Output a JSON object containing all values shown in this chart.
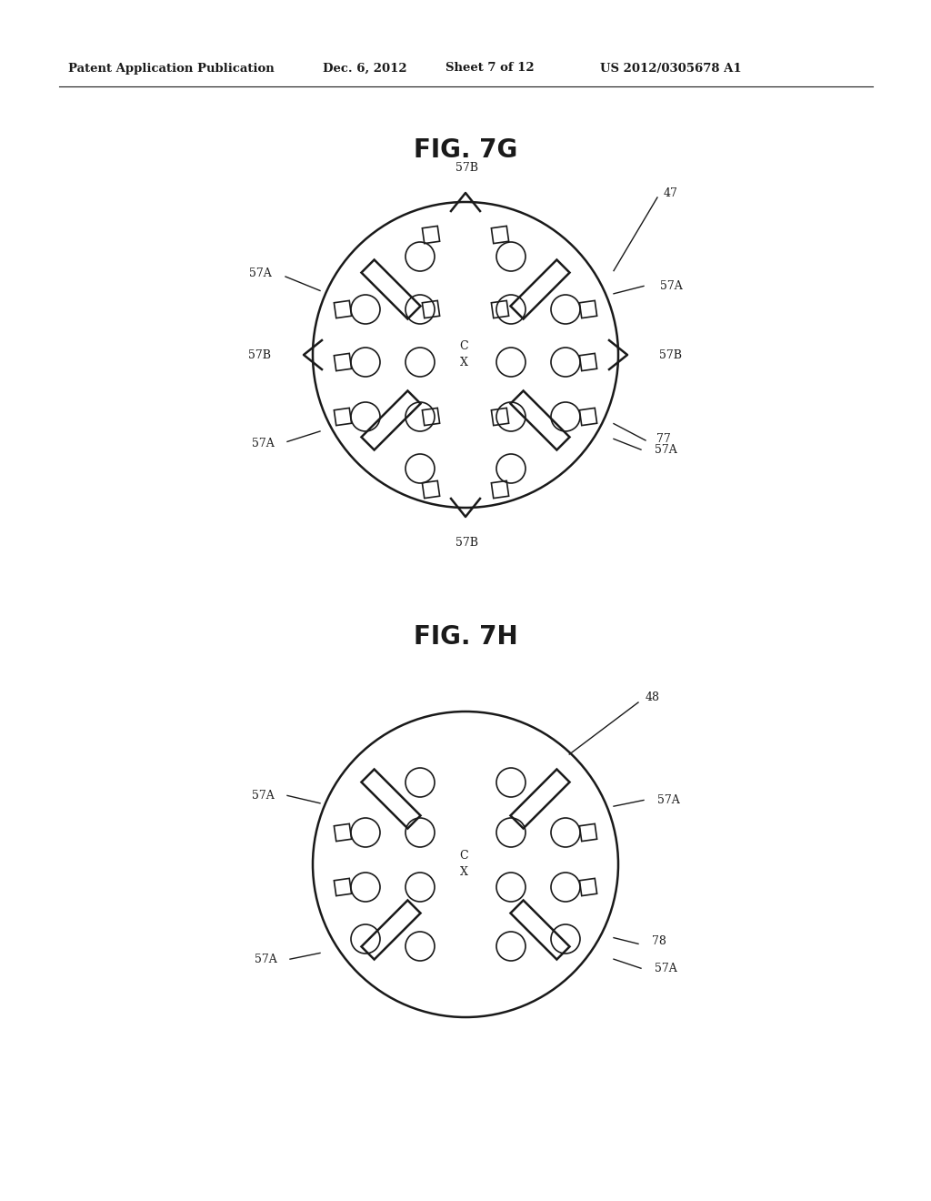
{
  "bg_color": "#ffffff",
  "line_color": "#1a1a1a",
  "header_text": "Patent Application Publication",
  "header_date": "Dec. 6, 2012",
  "header_sheet": "Sheet 7 of 12",
  "header_patent": "US 2012/0305678 A1",
  "fig1_title": "FIG. 7G",
  "fig2_title": "FIG. 7H"
}
